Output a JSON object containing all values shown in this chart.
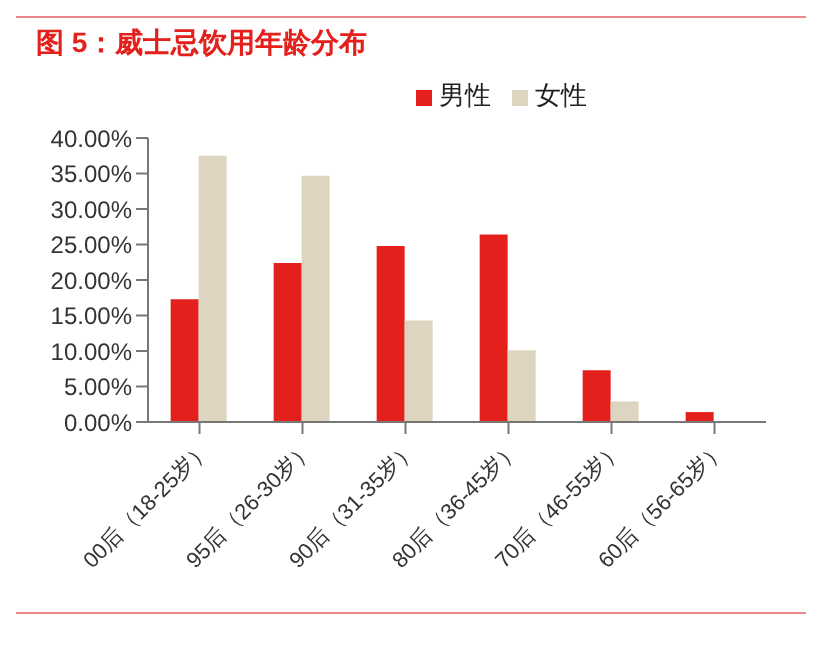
{
  "chart_data": {
    "type": "bar",
    "title": "图 5：威士忌饮用年龄分布",
    "categories": [
      "00后（18-25岁）",
      "95后（26-30岁）",
      "90后（31-35岁）",
      "80后（36-45岁）",
      "70后（46-55岁）",
      "60后（56-65岁）"
    ],
    "series": [
      {
        "name": "男性",
        "color": "#e3201b",
        "values": [
          17.3,
          22.4,
          24.8,
          26.4,
          7.3,
          1.4
        ]
      },
      {
        "name": "女性",
        "color": "#ddd5c0",
        "values": [
          37.5,
          34.7,
          14.3,
          10.1,
          2.9,
          0
        ]
      }
    ],
    "ylim": [
      0,
      40
    ],
    "yticks": [
      {
        "value": 0,
        "label": "0.00%"
      },
      {
        "value": 5,
        "label": "5.00%"
      },
      {
        "value": 10,
        "label": "10.00%"
      },
      {
        "value": 15,
        "label": "15.00%"
      },
      {
        "value": 20,
        "label": "20.00%"
      },
      {
        "value": 25,
        "label": "25.00%"
      },
      {
        "value": 30,
        "label": "30.00%"
      },
      {
        "value": 35,
        "label": "35.00%"
      },
      {
        "value": 40,
        "label": "40.00%"
      }
    ],
    "grid": false,
    "legend": "top"
  }
}
